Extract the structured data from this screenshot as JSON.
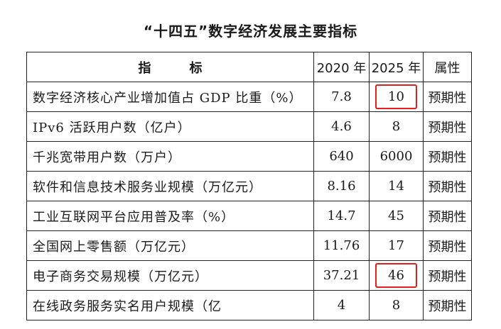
{
  "title": "“十四五”数字经济发展主要指标",
  "header": {
    "indicator_a": "指",
    "indicator_b": "标",
    "year_2020": "2020 年",
    "year_2025": "2025 年",
    "attribute": "属性"
  },
  "rows": [
    {
      "name": "数字经济核心产业增加值占 GDP 比重（%）",
      "v2020": "7.8",
      "v2025": "10",
      "attr": "预期性",
      "highlight": true
    },
    {
      "name": "IPv6 活跃用户数（亿户）",
      "v2020": "4.6",
      "v2025": "8",
      "attr": "预期性",
      "highlight": false
    },
    {
      "name": "千兆宽带用户数（万户）",
      "v2020": "640",
      "v2025": "6000",
      "attr": "预期性",
      "highlight": false
    },
    {
      "name": "软件和信息技术服务业规模（万亿元）",
      "v2020": "8.16",
      "v2025": "14",
      "attr": "预期性",
      "highlight": false
    },
    {
      "name": "工业互联网平台应用普及率（%）",
      "v2020": "14.7",
      "v2025": "45",
      "attr": "预期性",
      "highlight": false
    },
    {
      "name": "全国网上零售额（万亿元）",
      "v2020": "11.76",
      "v2025": "17",
      "attr": "预期性",
      "highlight": false
    },
    {
      "name": "电子商务交易规模（万亿元）",
      "v2020": "37.21",
      "v2025": "46",
      "attr": "预期性",
      "highlight": true
    },
    {
      "name": "在线政务服务实名用户规模（亿",
      "v2020": "4",
      "v2025": "8",
      "attr": "预期性",
      "highlight": false
    }
  ],
  "colors": {
    "highlight": "#e02020",
    "border": "#222222"
  }
}
